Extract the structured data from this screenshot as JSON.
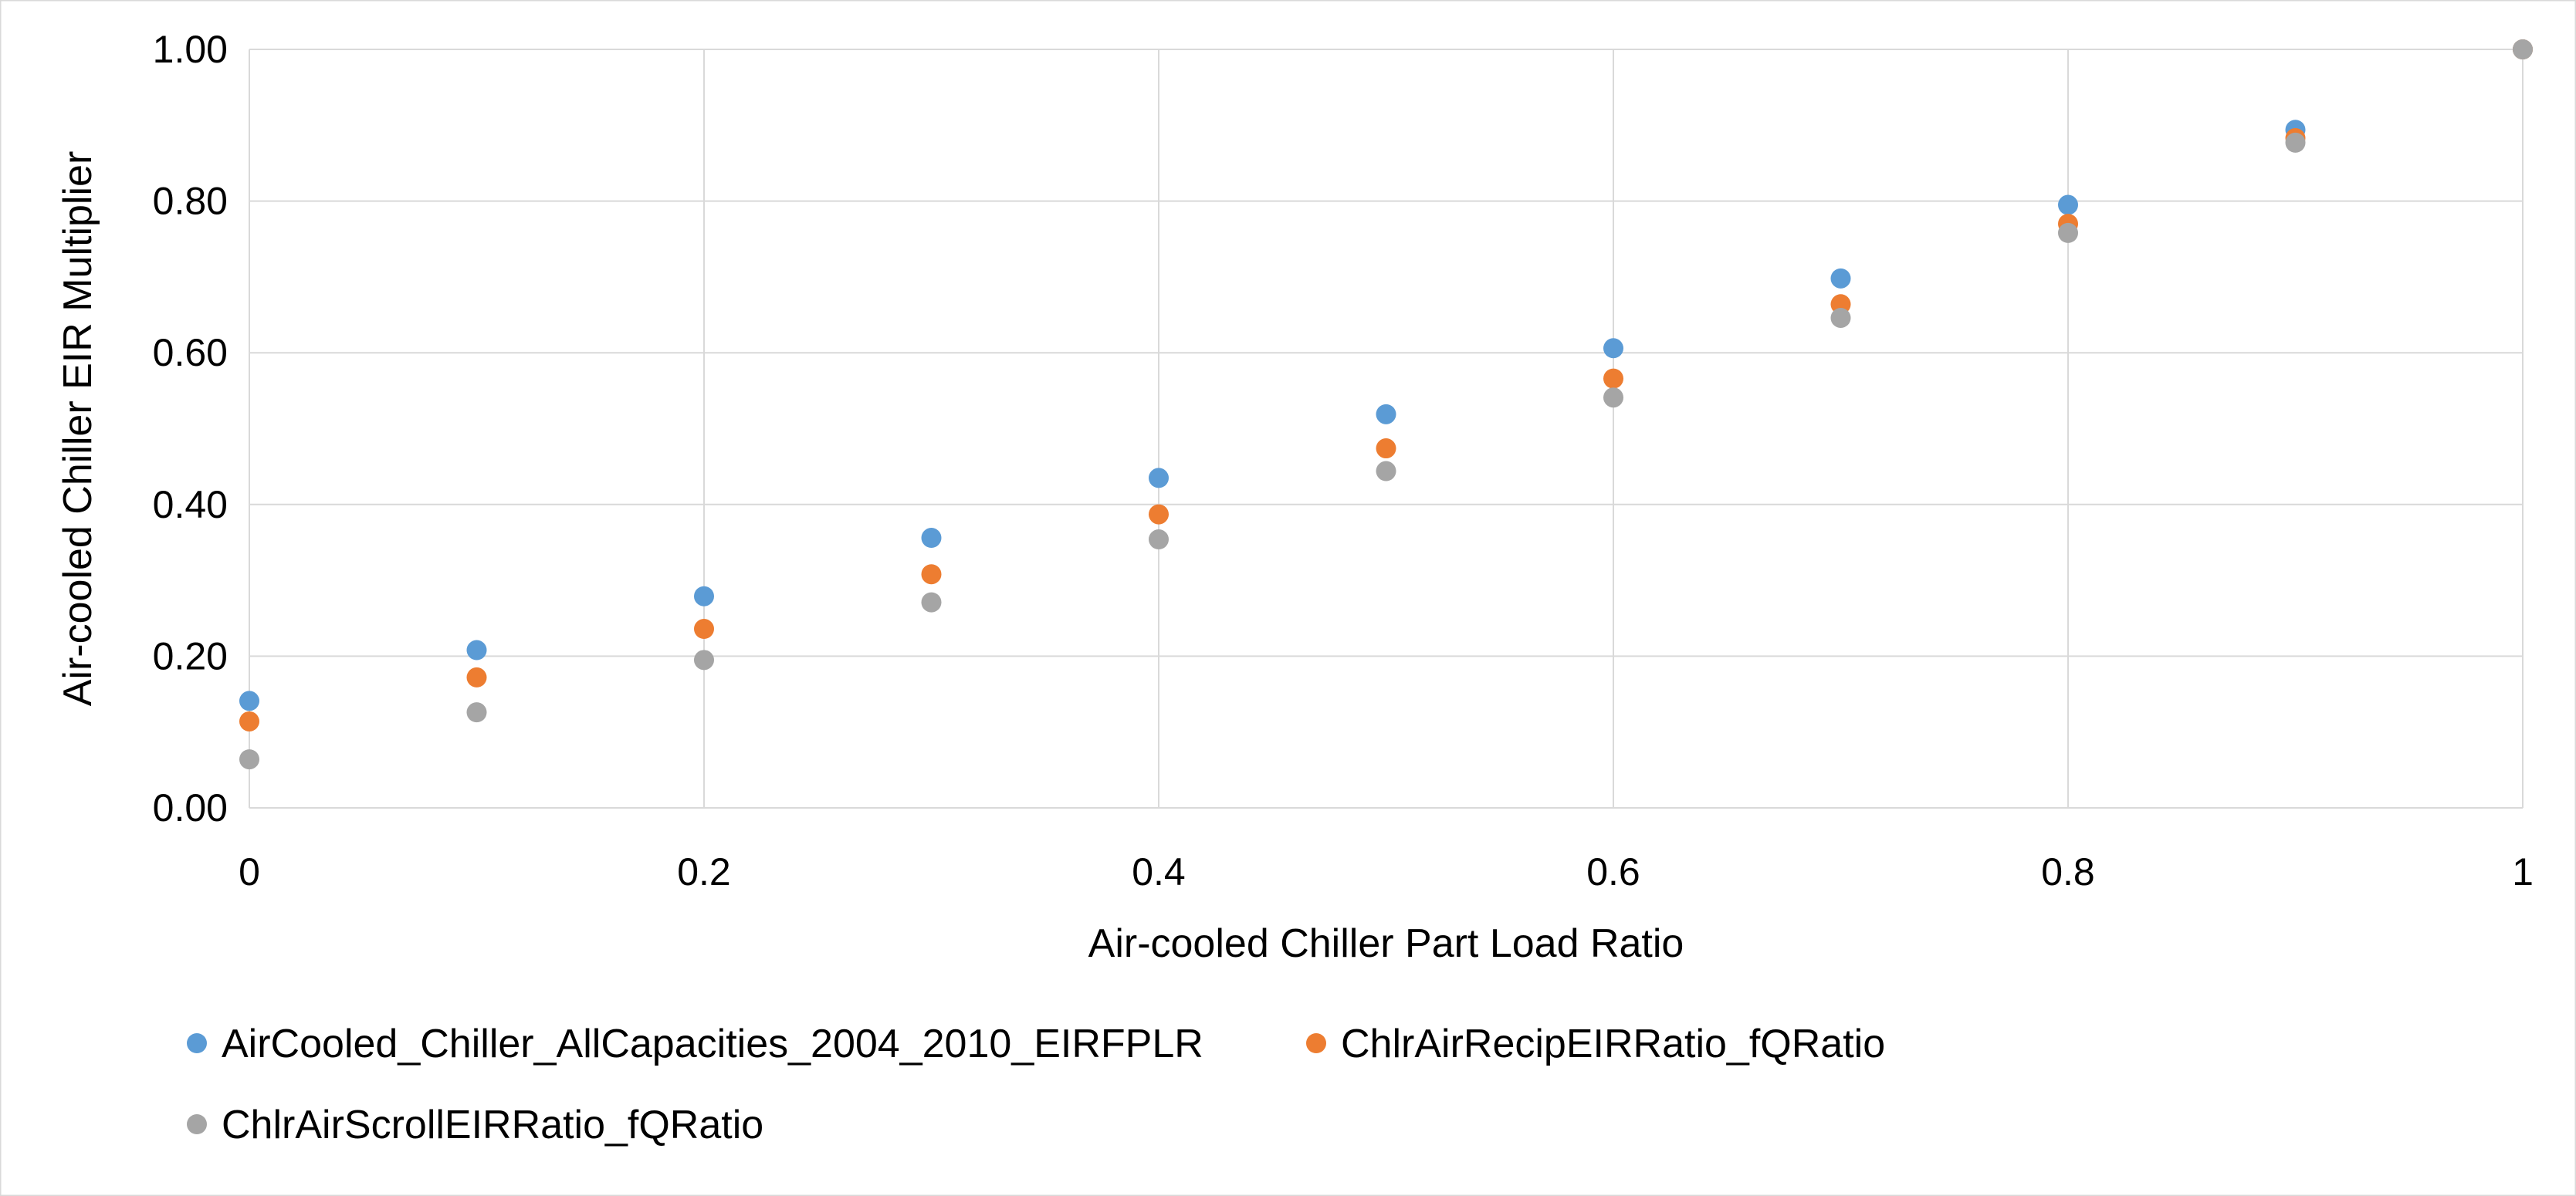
{
  "chart_data": {
    "type": "scatter",
    "xlabel": "Air-cooled Chiller Part Load Ratio",
    "ylabel": "Air-cooled Chiller EIR Multiplier",
    "xlim": [
      0,
      1
    ],
    "ylim": [
      0,
      1
    ],
    "x_ticks": [
      0,
      0.2,
      0.4,
      0.6,
      0.8,
      1
    ],
    "x_tick_labels": [
      "0",
      "0.2",
      "0.4",
      "0.6",
      "0.8",
      "1"
    ],
    "y_ticks": [
      0,
      0.2,
      0.4,
      0.6,
      0.8,
      1
    ],
    "y_tick_labels": [
      "0.00",
      "0.20",
      "0.40",
      "0.60",
      "0.80",
      "1.00"
    ],
    "grid": true,
    "legend_position": "bottom",
    "x": [
      0,
      0.1,
      0.2,
      0.3,
      0.4,
      0.5,
      0.6,
      0.7,
      0.8,
      0.9,
      1.0
    ],
    "series": [
      {
        "name": "AirCooled_Chiller_AllCapacities_2004_2010_EIRFPLR",
        "color": "#5B9BD5",
        "values": [
          0.141,
          0.208,
          0.279,
          0.356,
          0.435,
          0.519,
          0.606,
          0.698,
          0.795,
          0.894,
          1.0
        ]
      },
      {
        "name": "ChlrAirRecipEIRRatio_fQRatio",
        "color": "#ED7D31",
        "values": [
          0.114,
          0.172,
          0.236,
          0.308,
          0.387,
          0.474,
          0.566,
          0.664,
          0.77,
          0.883,
          1.0
        ]
      },
      {
        "name": "ChlrAirScrollEIRRatio_fQRatio",
        "color": "#A5A5A5",
        "values": [
          0.064,
          0.126,
          0.195,
          0.271,
          0.354,
          0.444,
          0.541,
          0.646,
          0.758,
          0.877,
          1.0
        ]
      }
    ]
  }
}
